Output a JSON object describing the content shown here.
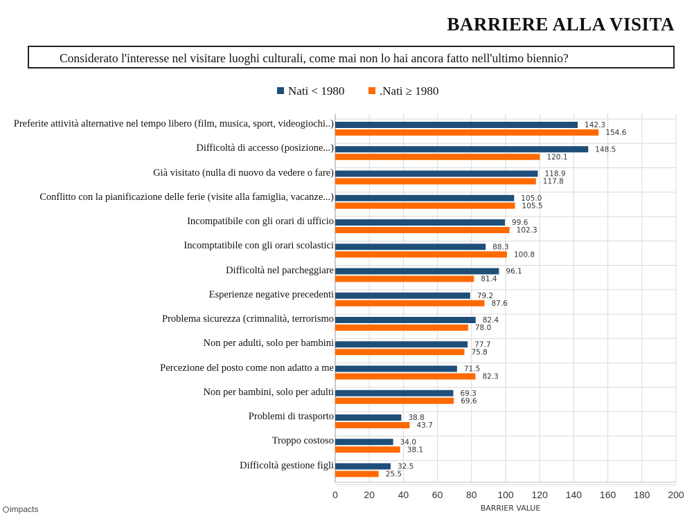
{
  "page": {
    "title": "BARRIERE ALLA VISITA",
    "question": "Considerato l'interesse nel visitare luoghi culturali, come mai non lo hai ancora fatto nell'ultimo biennio?",
    "logo_text": "impacts"
  },
  "colors": {
    "series1": "#1f4e79",
    "series2": "#ff6a00",
    "grid": "#d9d9d9",
    "text": "#333333"
  },
  "chart_data": {
    "type": "bar",
    "orientation": "horizontal",
    "categories": [
      "Preferite attività alternative nel tempo libero (film, musica, sport, videogiochi..)",
      "Difficoltà di accesso (posizione...)",
      "Già visitato (nulla di nuovo da vedere o fare)",
      "Conflitto con la pianificazione delle ferie (visite alla famiglia, vacanze...)",
      "Incompatibile con gli orari di ufficio",
      "Incomptatibile con gli orari scolastici",
      "Difficoltà nel parcheggiare",
      "Esperienze negative precedenti",
      "Problema sicurezza (crimnalità, terrorismo",
      "Non per adulti, solo per bambini",
      "Percezione del posto come non adatto a me",
      "Non per bambini, solo per adulti",
      "Problemi di trasporto",
      "Troppo costoso",
      "Difficoltà gestione figli"
    ],
    "series": [
      {
        "name": "Nati  < 1980",
        "values": [
          142.3,
          148.5,
          118.9,
          105.0,
          99.6,
          88.3,
          96.1,
          79.2,
          82.4,
          77.7,
          71.5,
          69.3,
          38.8,
          34.0,
          32.5
        ]
      },
      {
        "name": ".Nati  ≥ 1980",
        "values": [
          154.6,
          120.1,
          117.8,
          105.5,
          102.3,
          100.8,
          81.4,
          87.6,
          78.0,
          75.8,
          82.3,
          69.6,
          43.7,
          38.1,
          25.5
        ]
      }
    ],
    "xlabel": "BARRIER VALUE",
    "xlim": [
      0,
      200
    ],
    "xticks": [
      0,
      20,
      40,
      60,
      80,
      100,
      120,
      140,
      160,
      180,
      200
    ],
    "grid": true,
    "legend_position": "top"
  }
}
